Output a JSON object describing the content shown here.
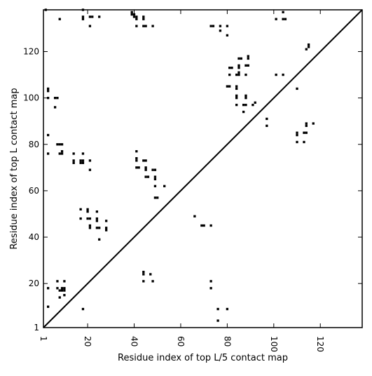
{
  "chart_data": {
    "type": "scatter",
    "xlabel": "Residue index of top L/5 contact map",
    "ylabel": "Residue index of top L contact map",
    "xlim": [
      1,
      138
    ],
    "ylim": [
      1,
      138
    ],
    "x_ticks": [
      1,
      20,
      40,
      60,
      80,
      100,
      120
    ],
    "y_ticks": [
      1,
      20,
      40,
      60,
      80,
      100,
      120
    ],
    "x_tick_labels": [
      "1",
      "20",
      "40",
      "60",
      "80",
      "100",
      "120"
    ],
    "y_tick_labels": [
      "1",
      "20",
      "40",
      "60",
      "80",
      "100",
      "120"
    ],
    "x_tick_rotation": -90,
    "diagonal": true,
    "grid": false,
    "colors": {
      "marker": "#000000",
      "axis": "#000000",
      "background": "#ffffff"
    },
    "series": [
      {
        "points": [
          [
            2,
            138
          ],
          [
            8,
            134
          ],
          [
            18,
            138
          ],
          [
            18,
            135
          ],
          [
            18,
            134
          ],
          [
            21,
            135
          ],
          [
            22,
            135
          ],
          [
            25,
            135
          ],
          [
            21,
            131
          ],
          [
            39,
            136
          ],
          [
            39,
            137
          ],
          [
            40,
            136
          ],
          [
            40,
            135
          ],
          [
            41,
            135
          ],
          [
            41,
            134
          ],
          [
            41,
            131
          ],
          [
            44,
            135
          ],
          [
            44,
            134
          ],
          [
            44,
            131
          ],
          [
            45,
            131
          ],
          [
            48,
            131
          ],
          [
            73,
            131
          ],
          [
            74,
            131
          ],
          [
            77,
            131
          ],
          [
            80,
            131
          ],
          [
            77,
            129
          ],
          [
            80,
            127
          ],
          [
            104,
            137
          ],
          [
            101,
            134
          ],
          [
            104,
            134
          ],
          [
            105,
            134
          ],
          [
            115,
            123
          ],
          [
            115,
            122
          ],
          [
            114,
            121
          ],
          [
            81,
            113
          ],
          [
            82,
            113
          ],
          [
            85,
            117
          ],
          [
            86,
            117
          ],
          [
            89,
            118
          ],
          [
            89,
            117
          ],
          [
            85,
            114
          ],
          [
            85,
            113
          ],
          [
            88,
            114
          ],
          [
            89,
            114
          ],
          [
            84,
            110
          ],
          [
            85,
            110
          ],
          [
            85,
            111
          ],
          [
            81,
            110
          ],
          [
            88,
            110
          ],
          [
            101,
            110
          ],
          [
            104,
            110
          ],
          [
            80,
            105
          ],
          [
            81,
            105
          ],
          [
            84,
            105
          ],
          [
            84,
            104
          ],
          [
            110,
            104
          ],
          [
            84,
            101
          ],
          [
            84,
            100
          ],
          [
            88,
            101
          ],
          [
            88,
            100
          ],
          [
            84,
            97
          ],
          [
            87,
            97
          ],
          [
            88,
            97
          ],
          [
            91,
            97
          ],
          [
            92,
            98
          ],
          [
            87,
            94
          ],
          [
            97,
            91
          ],
          [
            97,
            88
          ],
          [
            110,
            85
          ],
          [
            110,
            84
          ],
          [
            113,
            85
          ],
          [
            114,
            85
          ],
          [
            114,
            88
          ],
          [
            114,
            89
          ],
          [
            117,
            89
          ],
          [
            110,
            81
          ],
          [
            113,
            81
          ],
          [
            3,
            104
          ],
          [
            3,
            103
          ],
          [
            3,
            100
          ],
          [
            6,
            100
          ],
          [
            7,
            100
          ],
          [
            6,
            96
          ],
          [
            3,
            84
          ],
          [
            7,
            80
          ],
          [
            8,
            80
          ],
          [
            9,
            80
          ],
          [
            3,
            76
          ],
          [
            8,
            76
          ],
          [
            9,
            76
          ],
          [
            9,
            77
          ],
          [
            14,
            76
          ],
          [
            18,
            76
          ],
          [
            14,
            73
          ],
          [
            14,
            72
          ],
          [
            17,
            73
          ],
          [
            18,
            73
          ],
          [
            18,
            72
          ],
          [
            17,
            72
          ],
          [
            21,
            73
          ],
          [
            21,
            69
          ],
          [
            41,
            77
          ],
          [
            41,
            74
          ],
          [
            41,
            73
          ],
          [
            41,
            70
          ],
          [
            42,
            70
          ],
          [
            44,
            73
          ],
          [
            45,
            73
          ],
          [
            45,
            70
          ],
          [
            45,
            69
          ],
          [
            48,
            69
          ],
          [
            49,
            69
          ],
          [
            45,
            66
          ],
          [
            46,
            66
          ],
          [
            49,
            66
          ],
          [
            49,
            65
          ],
          [
            49,
            62
          ],
          [
            53,
            62
          ],
          [
            49,
            57
          ],
          [
            50,
            57
          ],
          [
            17,
            52
          ],
          [
            20,
            52
          ],
          [
            20,
            51
          ],
          [
            24,
            51
          ],
          [
            17,
            48
          ],
          [
            20,
            48
          ],
          [
            21,
            48
          ],
          [
            24,
            48
          ],
          [
            24,
            47
          ],
          [
            28,
            47
          ],
          [
            21,
            45
          ],
          [
            21,
            44
          ],
          [
            24,
            44
          ],
          [
            25,
            44
          ],
          [
            28,
            44
          ],
          [
            28,
            43
          ],
          [
            25,
            39
          ],
          [
            66,
            49
          ],
          [
            69,
            45
          ],
          [
            70,
            45
          ],
          [
            73,
            45
          ],
          [
            44,
            25
          ],
          [
            44,
            24
          ],
          [
            47,
            24
          ],
          [
            44,
            21
          ],
          [
            48,
            21
          ],
          [
            73,
            21
          ],
          [
            73,
            18
          ],
          [
            3,
            18
          ],
          [
            7,
            21
          ],
          [
            10,
            21
          ],
          [
            7,
            18
          ],
          [
            9,
            18
          ],
          [
            9,
            17
          ],
          [
            10,
            18
          ],
          [
            8,
            17
          ],
          [
            10,
            17
          ],
          [
            8,
            14
          ],
          [
            10,
            15
          ],
          [
            3,
            10
          ],
          [
            18,
            9
          ],
          [
            76,
            9
          ],
          [
            80,
            9
          ],
          [
            76,
            4
          ]
        ]
      }
    ]
  }
}
